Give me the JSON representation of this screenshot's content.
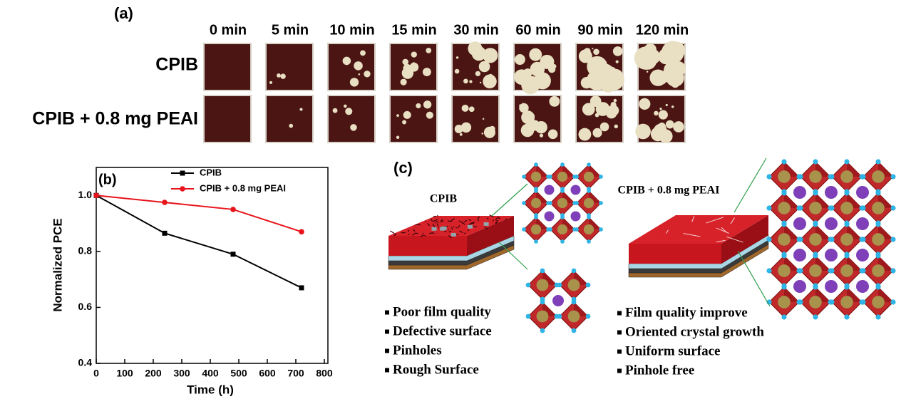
{
  "panel_a": {
    "label": "(a)",
    "times": [
      "0 min",
      "5 min",
      "10 min",
      "15 min",
      "30 min",
      "60 min",
      "90 min",
      "120 min"
    ],
    "rows": [
      "CPIB",
      "CPIB + 0.8 mg PEAI"
    ]
  },
  "chart_data": {
    "type": "line",
    "panel_label": "(b)",
    "x_label": "Time (h)",
    "y_label": "Normalized PCE",
    "x": [
      0,
      240,
      480,
      720
    ],
    "series": [
      {
        "name": "CPIB",
        "color": "#000000",
        "marker": "square",
        "values": [
          1.0,
          0.865,
          0.79,
          0.67
        ]
      },
      {
        "name": "CPIB + 0.8 mg PEAI",
        "color": "#e8141b",
        "marker": "circle",
        "values": [
          1.0,
          0.975,
          0.95,
          0.87
        ]
      }
    ],
    "xlim": [
      0,
      800
    ],
    "xticks": [
      0,
      100,
      200,
      300,
      400,
      500,
      600,
      700,
      800
    ],
    "ylim": [
      0.4,
      1.1
    ],
    "yticks": [
      0.4,
      0.6,
      0.8,
      {
        "value": 1.0,
        "label": "1.0"
      }
    ],
    "legend": "upper right"
  },
  "panel_c": {
    "label": "(c)",
    "left_title": "CPIB",
    "right_title": "CPIB + 0.8 mg PEAI",
    "left_points": [
      "Poor film quality",
      "Defective surface",
      "Pinholes",
      "Rough Surface"
    ],
    "right_points": [
      "Film quality improve",
      "Oriented crystal growth",
      "Uniform surface",
      "Pinhole free"
    ]
  }
}
